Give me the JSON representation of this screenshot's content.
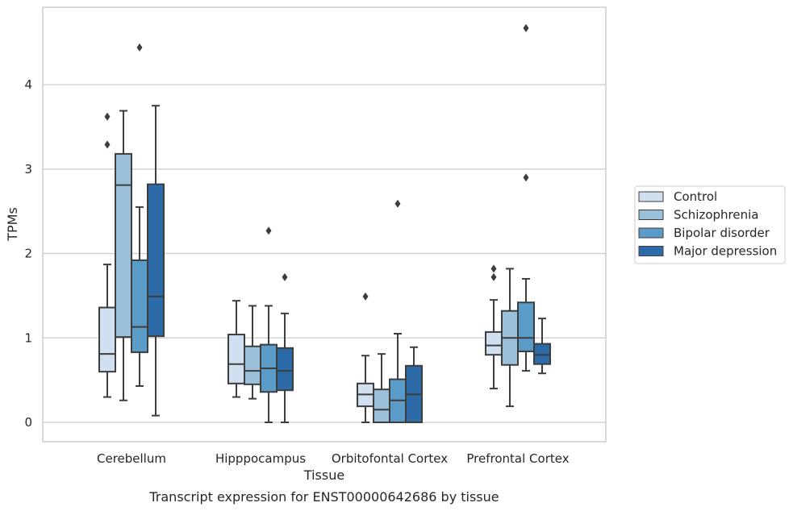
{
  "chart_data": {
    "type": "box",
    "title": "Transcript expression for ENST00000642686 by tissue",
    "xlabel": "Tissue",
    "ylabel": "TPMs",
    "ylim": [
      -0.23,
      4.9
    ],
    "yticks": [
      0,
      1,
      2,
      3,
      4
    ],
    "grid": "horizontal",
    "legend_position": "right",
    "categories": [
      "Cerebellum",
      "Hipppocampus",
      "Orbitofontal Cortex",
      "Prefrontal Cortex"
    ],
    "series": [
      {
        "name": "Control",
        "color": "#d0e0f0",
        "boxes": [
          {
            "whislo": 0.3,
            "q1": 0.6,
            "med": 0.81,
            "q3": 1.36,
            "whishi": 1.87,
            "fliers": [
              3.29,
              3.62
            ]
          },
          {
            "whislo": 0.3,
            "q1": 0.46,
            "med": 0.69,
            "q3": 1.04,
            "whishi": 1.44,
            "fliers": []
          },
          {
            "whislo": 0.0,
            "q1": 0.19,
            "med": 0.33,
            "q3": 0.46,
            "whishi": 0.79,
            "fliers": [
              1.49
            ]
          },
          {
            "whislo": 0.4,
            "q1": 0.8,
            "med": 0.91,
            "q3": 1.07,
            "whishi": 1.45,
            "fliers": [
              1.72,
              1.82
            ]
          }
        ]
      },
      {
        "name": "Schizophrenia",
        "color": "#9ac1d9",
        "boxes": [
          {
            "whislo": 0.26,
            "q1": 1.01,
            "med": 2.81,
            "q3": 3.18,
            "whishi": 3.69,
            "fliers": []
          },
          {
            "whislo": 0.28,
            "q1": 0.45,
            "med": 0.61,
            "q3": 0.9,
            "whishi": 1.38,
            "fliers": []
          },
          {
            "whislo": 0.0,
            "q1": 0.0,
            "med": 0.15,
            "q3": 0.39,
            "whishi": 0.81,
            "fliers": []
          },
          {
            "whislo": 0.19,
            "q1": 0.68,
            "med": 1.0,
            "q3": 1.32,
            "whishi": 1.82,
            "fliers": []
          }
        ]
      },
      {
        "name": "Bipolar disorder",
        "color": "#5b9bc8",
        "boxes": [
          {
            "whislo": 0.43,
            "q1": 0.83,
            "med": 1.13,
            "q3": 1.92,
            "whishi": 2.55,
            "fliers": [
              4.44
            ]
          },
          {
            "whislo": 0.0,
            "q1": 0.36,
            "med": 0.64,
            "q3": 0.92,
            "whishi": 1.38,
            "fliers": [
              2.27
            ]
          },
          {
            "whislo": 0.0,
            "q1": 0.0,
            "med": 0.26,
            "q3": 0.51,
            "whishi": 1.05,
            "fliers": [
              2.59
            ]
          },
          {
            "whislo": 0.61,
            "q1": 0.84,
            "med": 1.0,
            "q3": 1.42,
            "whishi": 1.7,
            "fliers": [
              2.9,
              4.67
            ]
          }
        ]
      },
      {
        "name": "Major depression",
        "color": "#2c6aa8",
        "boxes": [
          {
            "whislo": 0.08,
            "q1": 1.02,
            "med": 1.49,
            "q3": 2.82,
            "whishi": 3.75,
            "fliers": []
          },
          {
            "whislo": 0.0,
            "q1": 0.38,
            "med": 0.61,
            "q3": 0.88,
            "whishi": 1.29,
            "fliers": [
              1.72
            ]
          },
          {
            "whislo": 0.0,
            "q1": 0.0,
            "med": 0.33,
            "q3": 0.67,
            "whishi": 0.89,
            "fliers": []
          },
          {
            "whislo": 0.58,
            "q1": 0.69,
            "med": 0.8,
            "q3": 0.93,
            "whishi": 1.23,
            "fliers": []
          }
        ]
      }
    ]
  }
}
